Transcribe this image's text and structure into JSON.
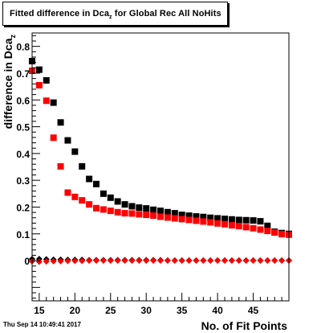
{
  "title": {
    "prefix": "Fitted difference in Dca",
    "subscript": "z",
    "suffix": " for Global Rec All NoHits"
  },
  "timestamp": "Thu Sep 14 10:49:41 2017",
  "chart_data": {
    "type": "scatter",
    "xlabel": "No. of Fit Points",
    "ylabel": "difference in Dca",
    "ylabel_subscript": "z",
    "xlim": [
      14,
      50
    ],
    "ylim": [
      -0.15,
      0.85
    ],
    "xticks": [
      15,
      20,
      25,
      30,
      35,
      40,
      45
    ],
    "yticks": [
      0,
      0.1,
      0.2,
      0.3,
      0.4,
      0.5,
      0.6,
      0.7,
      0.8
    ],
    "ytick_labels": [
      "0",
      "0.1",
      "0.2",
      "0.3",
      "0.4",
      "0.5",
      "0.6",
      "0.7",
      "0.8"
    ],
    "grid": false,
    "series": [
      {
        "color": "#000000",
        "marker": "square",
        "x": [
          14,
          15,
          16,
          17,
          18,
          19,
          20,
          21,
          22,
          23,
          24,
          25,
          26,
          27,
          28,
          29,
          30,
          31,
          32,
          33,
          34,
          35,
          36,
          37,
          38,
          39,
          40,
          41,
          42,
          43,
          44,
          45,
          46,
          47,
          48,
          49,
          50
        ],
        "y": [
          0.745,
          0.713,
          0.673,
          0.59,
          0.516,
          0.449,
          0.407,
          0.352,
          0.305,
          0.286,
          0.25,
          0.235,
          0.221,
          0.21,
          0.203,
          0.198,
          0.195,
          0.19,
          0.186,
          0.181,
          0.177,
          0.171,
          0.168,
          0.165,
          0.163,
          0.16,
          0.158,
          0.156,
          0.154,
          0.152,
          0.151,
          0.15,
          0.147,
          0.13,
          0.108,
          0.103,
          0.1
        ]
      },
      {
        "color": "#ff0000",
        "marker": "square",
        "x": [
          14,
          15,
          16,
          17,
          18,
          19,
          20,
          21,
          22,
          23,
          24,
          25,
          26,
          27,
          28,
          29,
          30,
          31,
          32,
          33,
          34,
          35,
          36,
          37,
          38,
          39,
          40,
          41,
          42,
          43,
          44,
          45,
          46,
          47,
          48,
          49,
          50
        ],
        "y": [
          0.709,
          0.655,
          0.597,
          0.459,
          0.352,
          0.254,
          0.238,
          0.225,
          0.21,
          0.196,
          0.191,
          0.186,
          0.181,
          0.177,
          0.176,
          0.173,
          0.171,
          0.168,
          0.164,
          0.161,
          0.158,
          0.155,
          0.152,
          0.149,
          0.146,
          0.143,
          0.139,
          0.136,
          0.132,
          0.129,
          0.125,
          0.121,
          0.116,
          0.111,
          0.105,
          0.099,
          0.097
        ]
      },
      {
        "color": "#000000",
        "marker": "diamond",
        "x": [
          14,
          15,
          16,
          17,
          18,
          19,
          20,
          21,
          22,
          23,
          24,
          25,
          26,
          27,
          28,
          29,
          30,
          31,
          32,
          33,
          34,
          35,
          36,
          37,
          38,
          39,
          40,
          41,
          42,
          43,
          44,
          45,
          46,
          47,
          48,
          49,
          50
        ],
        "y": [
          0.006,
          0.006,
          0.005,
          0.004,
          0.004,
          0.003,
          0.003,
          0.003,
          0.002,
          0.002,
          0.002,
          0.002,
          0.002,
          0.002,
          0.002,
          0.002,
          0.002,
          0.002,
          0.002,
          0.001,
          0.001,
          0.001,
          0.001,
          0.001,
          0.001,
          0.001,
          0.001,
          0.001,
          0.001,
          0.001,
          0.001,
          0.001,
          0.001,
          0.001,
          0.001,
          0.001,
          0.001
        ]
      },
      {
        "color": "#ff0000",
        "marker": "diamond",
        "x": [
          14,
          15,
          16,
          17,
          18,
          19,
          20,
          21,
          22,
          23,
          24,
          25,
          26,
          27,
          28,
          29,
          30,
          31,
          32,
          33,
          34,
          35,
          36,
          37,
          38,
          39,
          40,
          41,
          42,
          43,
          44,
          45,
          46,
          47,
          48,
          49,
          50
        ],
        "y": [
          -0.002,
          -0.004,
          -0.003,
          -0.002,
          -0.002,
          -0.001,
          -0.001,
          -0.001,
          0.0,
          0.0,
          0.0,
          0.0,
          0.0,
          0.0,
          0.0,
          0.0,
          0.0,
          0.0,
          0.0,
          0.0,
          0.0,
          0.0,
          0.0,
          0.0,
          0.0,
          0.0,
          0.0,
          0.0,
          0.0,
          0.0,
          0.0,
          0.0,
          0.0,
          0.0,
          0.0,
          0.0,
          0.0
        ]
      }
    ]
  }
}
